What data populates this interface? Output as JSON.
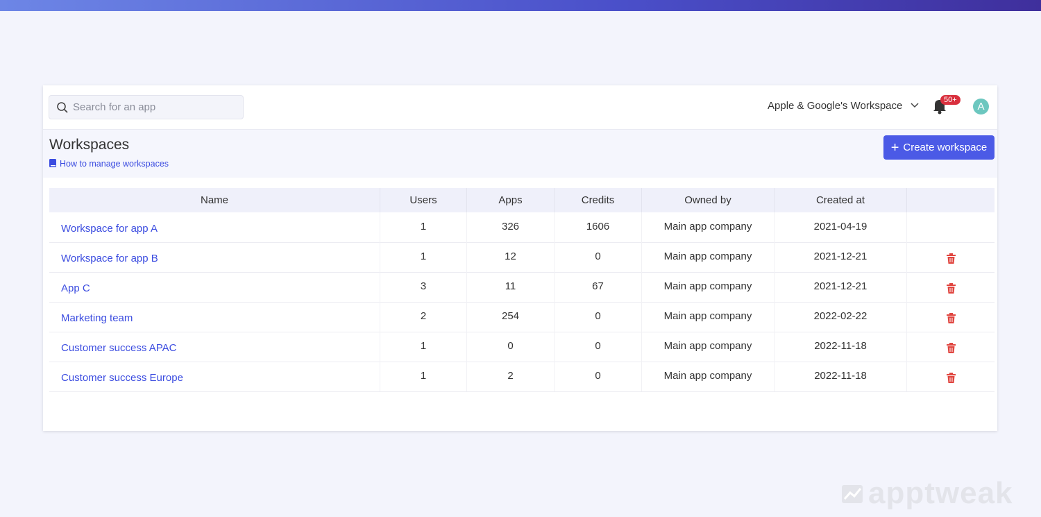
{
  "search": {
    "placeholder": "Search for an app"
  },
  "header": {
    "workspace": "Apple & Google's Workspace",
    "notifications": "50+",
    "avatar": "A"
  },
  "page": {
    "title": "Workspaces",
    "help_link": "How to manage workspaces",
    "create_button": "Create workspace"
  },
  "table": {
    "columns": [
      "Name",
      "Users",
      "Apps",
      "Credits",
      "Owned by",
      "Created at"
    ],
    "rows": [
      [
        "Workspace for app A",
        1,
        326,
        1606,
        "Main app company",
        "2021-04-19"
      ],
      [
        "Workspace for app B",
        1,
        12,
        0,
        "Main app company",
        "2021-12-21"
      ],
      [
        "App C",
        3,
        11,
        67,
        "Main app company",
        "2021-12-21"
      ],
      [
        "Marketing team",
        2,
        254,
        0,
        "Main app company",
        "2022-02-22"
      ],
      [
        "Customer success APAC",
        1,
        0,
        0,
        "Main app company",
        "2022-11-18"
      ],
      [
        "Customer success Europe",
        1,
        2,
        0,
        "Main app company",
        "2022-11-18"
      ]
    ]
  },
  "watermark": "apptweak"
}
